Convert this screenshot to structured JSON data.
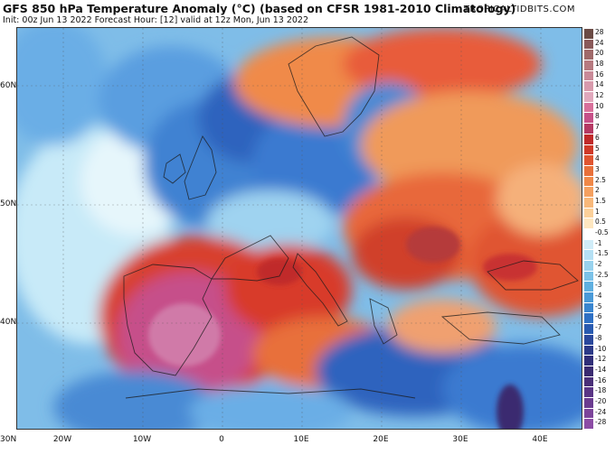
{
  "header": {
    "title": "GFS 850 hPa Temperature Anomaly (°C) (based on CFSR 1981-2010 Climatology)",
    "subtitle": "Init: 00z Jun 13 2022   Forecast Hour: [12]   valid at 12z Mon, Jun 13 2022",
    "brand": "TROPICALTIDBITS.COM"
  },
  "axes": {
    "lat_labels": [
      "60N",
      "50N",
      "40N",
      "30N"
    ],
    "lon_labels": [
      "20W",
      "10W",
      "0",
      "10E",
      "20E",
      "30E",
      "40E"
    ]
  },
  "colorbar": {
    "labels": [
      "28",
      "24",
      "20",
      "18",
      "16",
      "14",
      "12",
      "10",
      "8",
      "7",
      "6",
      "5",
      "4",
      "3",
      "2.5",
      "2",
      "1.5",
      "1",
      "0.5",
      "-0.5",
      "-1",
      "-1.5",
      "-2",
      "-2.5",
      "-3",
      "-4",
      "-5",
      "-6",
      "-7",
      "-8",
      "-10",
      "-12",
      "-14",
      "-16",
      "-18",
      "-20",
      "-24",
      "-28"
    ],
    "colors": [
      "#6b4b45",
      "#8a5a5a",
      "#a06a6a",
      "#b77a80",
      "#c98a98",
      "#d89aac",
      "#e0a8bc",
      "#d8709a",
      "#c65088",
      "#b53a64",
      "#c02a2a",
      "#d03a28",
      "#e05530",
      "#e8703a",
      "#f08848",
      "#f5a060",
      "#f8b87a",
      "#fbd09a",
      "#fde6c0",
      "#ffffff",
      "#d0ecf8",
      "#b5e0f4",
      "#98d2ee",
      "#7cc2e8",
      "#60b0e0",
      "#4a9ad8",
      "#3a86d0",
      "#2e70c4",
      "#285ab0",
      "#2a489c",
      "#2c3a88",
      "#302e78",
      "#3a2a70",
      "#4a2f78",
      "#5a3585",
      "#6b3c90",
      "#7c449a",
      "#8c4ca5"
    ]
  },
  "map": {
    "region": "Europe",
    "colors": {
      "ocean_light": "#bfe6f6",
      "cool_blue": "#4f96d8",
      "deep_blue": "#2d5fb8",
      "warm_orange": "#f08a4a",
      "hot_red": "#d23a2a",
      "extreme_pink": "#c6508a"
    }
  }
}
